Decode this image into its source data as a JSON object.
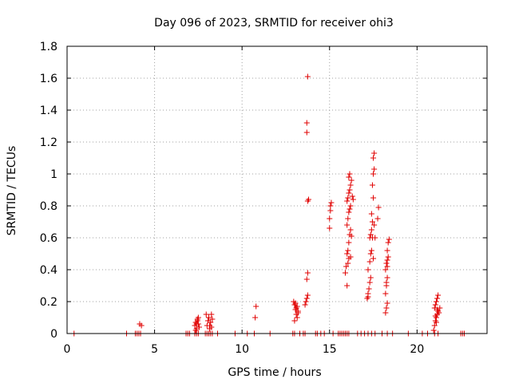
{
  "chart_data": {
    "type": "scatter",
    "title": "Day 096 of 2023, SRMTID for receiver ohi3",
    "xlabel": "GPS time / hours",
    "ylabel": "SRMTID / TECUs",
    "xlim": [
      0,
      24
    ],
    "ylim": [
      0,
      1.8
    ],
    "xticks": [
      0,
      5,
      10,
      15,
      20
    ],
    "xtick_labels": [
      "0",
      "5",
      "10",
      "15",
      "20"
    ],
    "yticks": [
      0,
      0.2,
      0.4,
      0.6,
      0.8,
      1,
      1.2,
      1.4,
      1.6,
      1.8
    ],
    "ytick_labels": [
      "0",
      "0.2",
      "0.4",
      "0.6",
      "0.8",
      "1",
      "1.2",
      "1.4",
      "1.6",
      "1.8"
    ],
    "grid": true,
    "marker": "+",
    "color": "#e00000",
    "series": [
      {
        "name": "SRMTID",
        "points": [
          [
            0.4,
            0
          ],
          [
            3.4,
            0
          ],
          [
            3.9,
            0
          ],
          [
            4.0,
            0
          ],
          [
            4.1,
            0
          ],
          [
            4.2,
            0
          ],
          [
            4.15,
            0.06
          ],
          [
            4.25,
            0.05
          ],
          [
            6.8,
            0
          ],
          [
            6.9,
            0
          ],
          [
            7.0,
            0
          ],
          [
            7.3,
            0
          ],
          [
            7.4,
            0
          ],
          [
            7.5,
            0
          ],
          [
            7.3,
            0.05
          ],
          [
            7.35,
            0.07
          ],
          [
            7.4,
            0.03
          ],
          [
            7.45,
            0.08
          ],
          [
            7.5,
            0.06
          ],
          [
            7.55,
            0.04
          ],
          [
            7.35,
            0.02
          ],
          [
            7.45,
            0.09
          ],
          [
            7.5,
            0.1
          ],
          [
            7.4,
            0.06
          ],
          [
            7.9,
            0
          ],
          [
            8.0,
            0
          ],
          [
            8.1,
            0
          ],
          [
            8.2,
            0
          ],
          [
            8.3,
            0
          ],
          [
            7.95,
            0.12
          ],
          [
            8.0,
            0.05
          ],
          [
            8.05,
            0.08
          ],
          [
            8.1,
            0.1
          ],
          [
            8.15,
            0.03
          ],
          [
            8.2,
            0.07
          ],
          [
            8.25,
            0.12
          ],
          [
            8.3,
            0.09
          ],
          [
            8.15,
            0.05
          ],
          [
            8.25,
            0.04
          ],
          [
            8.6,
            0
          ],
          [
            9.6,
            0
          ],
          [
            10.3,
            0
          ],
          [
            10.7,
            0
          ],
          [
            10.75,
            0.1
          ],
          [
            10.8,
            0.17
          ],
          [
            11.6,
            0
          ],
          [
            12.9,
            0
          ],
          [
            13.0,
            0
          ],
          [
            13.3,
            0
          ],
          [
            13.5,
            0
          ],
          [
            13.6,
            0
          ],
          [
            12.95,
            0.2
          ],
          [
            13.0,
            0.18
          ],
          [
            13.05,
            0.15
          ],
          [
            13.1,
            0.12
          ],
          [
            13.15,
            0.1
          ],
          [
            13.2,
            0.14
          ],
          [
            13.0,
            0.08
          ],
          [
            13.05,
            0.19
          ],
          [
            13.1,
            0.16
          ],
          [
            13.15,
            0.17
          ],
          [
            13.2,
            0.13
          ],
          [
            13.6,
            0.18
          ],
          [
            13.65,
            0.2
          ],
          [
            13.7,
            0.22
          ],
          [
            13.75,
            0.24
          ],
          [
            13.7,
            0.34
          ],
          [
            13.75,
            0.38
          ],
          [
            13.8,
            0.84
          ],
          [
            13.75,
            0.83
          ],
          [
            13.7,
            1.26
          ],
          [
            13.7,
            1.32
          ],
          [
            13.75,
            1.61
          ],
          [
            14.2,
            0
          ],
          [
            14.3,
            0
          ],
          [
            14.5,
            0
          ],
          [
            14.7,
            0
          ],
          [
            15.2,
            0
          ],
          [
            15.5,
            0
          ],
          [
            15.6,
            0
          ],
          [
            15.7,
            0
          ],
          [
            15.8,
            0
          ],
          [
            15.9,
            0
          ],
          [
            16.0,
            0
          ],
          [
            16.1,
            0
          ],
          [
            15.0,
            0.66
          ],
          [
            15.0,
            0.72
          ],
          [
            15.05,
            0.77
          ],
          [
            15.05,
            0.8
          ],
          [
            15.1,
            0.82
          ],
          [
            15.9,
            0.38
          ],
          [
            15.95,
            0.42
          ],
          [
            16.0,
            0.5
          ],
          [
            16.05,
            0.52
          ],
          [
            16.1,
            0.57
          ],
          [
            16.15,
            0.62
          ],
          [
            16.2,
            0.65
          ],
          [
            16.0,
            0.68
          ],
          [
            16.05,
            0.72
          ],
          [
            16.1,
            0.76
          ],
          [
            16.15,
            0.78
          ],
          [
            16.2,
            0.8
          ],
          [
            16.0,
            0.83
          ],
          [
            16.05,
            0.85
          ],
          [
            16.1,
            0.88
          ],
          [
            16.15,
            0.9
          ],
          [
            16.2,
            0.93
          ],
          [
            16.25,
            0.96
          ],
          [
            16.1,
            0.98
          ],
          [
            16.15,
            1.0
          ],
          [
            16.1,
            0.47
          ],
          [
            16.2,
            0.48
          ],
          [
            16.25,
            0.61
          ],
          [
            16.0,
            0.3
          ],
          [
            16.3,
            0.86
          ],
          [
            16.35,
            0.84
          ],
          [
            16.05,
            0.44
          ],
          [
            16.6,
            0
          ],
          [
            16.8,
            0
          ],
          [
            17.0,
            0
          ],
          [
            17.2,
            0
          ],
          [
            17.4,
            0
          ],
          [
            17.6,
            0
          ],
          [
            17.15,
            0.22
          ],
          [
            17.2,
            0.25
          ],
          [
            17.25,
            0.28
          ],
          [
            17.3,
            0.32
          ],
          [
            17.35,
            0.35
          ],
          [
            17.2,
            0.4
          ],
          [
            17.3,
            0.45
          ],
          [
            17.35,
            0.5
          ],
          [
            17.4,
            0.52
          ],
          [
            17.3,
            0.6
          ],
          [
            17.35,
            0.62
          ],
          [
            17.4,
            0.65
          ],
          [
            17.45,
            0.7
          ],
          [
            17.4,
            0.75
          ],
          [
            17.5,
            0.85
          ],
          [
            17.45,
            0.93
          ],
          [
            17.5,
            1.0
          ],
          [
            17.55,
            1.03
          ],
          [
            17.5,
            1.1
          ],
          [
            17.55,
            1.13
          ],
          [
            17.45,
            0.6
          ],
          [
            17.5,
            0.47
          ],
          [
            17.55,
            0.68
          ],
          [
            17.75,
            0.72
          ],
          [
            17.8,
            0.79
          ],
          [
            17.6,
            0.6
          ],
          [
            17.2,
            0.23
          ],
          [
            18.0,
            0
          ],
          [
            18.3,
            0
          ],
          [
            18.6,
            0
          ],
          [
            19.5,
            0
          ],
          [
            20.3,
            0
          ],
          [
            20.6,
            0
          ],
          [
            21.0,
            0
          ],
          [
            21.2,
            0
          ],
          [
            18.2,
            0.13
          ],
          [
            18.25,
            0.16
          ],
          [
            18.3,
            0.19
          ],
          [
            18.2,
            0.25
          ],
          [
            18.25,
            0.32
          ],
          [
            18.3,
            0.35
          ],
          [
            18.2,
            0.4
          ],
          [
            18.25,
            0.44
          ],
          [
            18.3,
            0.46
          ],
          [
            18.35,
            0.48
          ],
          [
            18.3,
            0.52
          ],
          [
            18.35,
            0.57
          ],
          [
            18.4,
            0.59
          ],
          [
            18.3,
            0.42
          ],
          [
            18.25,
            0.3
          ],
          [
            20.95,
            0.02
          ],
          [
            21.0,
            0.05
          ],
          [
            21.05,
            0.08
          ],
          [
            21.1,
            0.1
          ],
          [
            21.15,
            0.12
          ],
          [
            21.2,
            0.14
          ],
          [
            21.0,
            0.16
          ],
          [
            21.05,
            0.18
          ],
          [
            21.1,
            0.2
          ],
          [
            21.15,
            0.22
          ],
          [
            21.2,
            0.24
          ],
          [
            21.1,
            0.07
          ],
          [
            21.15,
            0.15
          ],
          [
            21.25,
            0.13
          ],
          [
            21.3,
            0.16
          ],
          [
            21.05,
            0.11
          ],
          [
            22.5,
            0
          ],
          [
            22.6,
            0
          ],
          [
            22.7,
            0
          ]
        ]
      }
    ]
  }
}
